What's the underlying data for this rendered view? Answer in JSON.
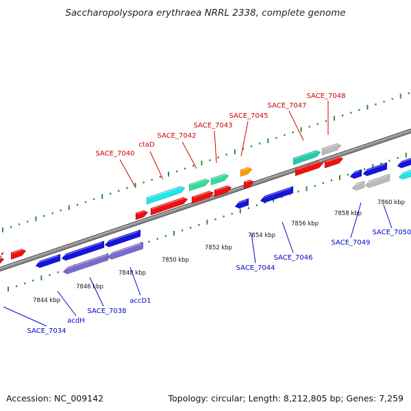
{
  "title": "Saccharopolyspora erythraea NRRL 2338, complete genome",
  "footer": {
    "accession": "Accession: NC_009142",
    "summary": "Topology: circular; Length: 8,212,805 bp; Genes: 7,259"
  },
  "colors": {
    "forward_label": "#cc0000",
    "reverse_label": "#0000cc",
    "backbone": "#8a8a8a",
    "tick": "#2e8b2e",
    "red": "#ee1111",
    "blue": "#1515dd",
    "purple": "#7a6acc",
    "cyan": "#22e6e6",
    "teal": "#22ccaa",
    "mint": "#33dd99",
    "orange": "#ff9900",
    "gray": "#bbbbbb"
  },
  "scale_labels": [
    {
      "text": "7844 kbp"
    },
    {
      "text": "7846 kbp"
    },
    {
      "text": "7848 kbp"
    },
    {
      "text": "7850 kbp"
    },
    {
      "text": "7852 kbp"
    },
    {
      "text": "7854 kbp"
    },
    {
      "text": "7856 kbp"
    },
    {
      "text": "7858 kbp"
    },
    {
      "text": "7860 kbp"
    }
  ],
  "forward_labels": [
    "SACE_7040",
    "ctaD",
    "SACE_7042",
    "SACE_7043",
    "SACE_7045",
    "SACE_7047",
    "SACE_7048"
  ],
  "reverse_labels": [
    "SACE_7034",
    "acdH",
    "SACE_7038",
    "accD1",
    "SACE_7044",
    "SACE_7046",
    "SACE_7049",
    "SACE_7050"
  ]
}
